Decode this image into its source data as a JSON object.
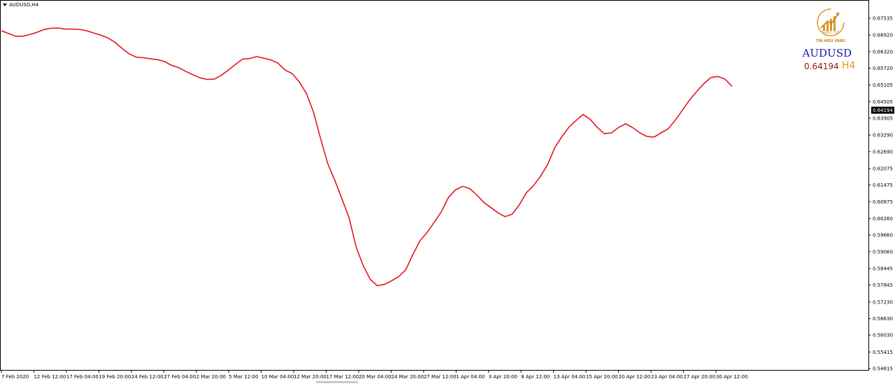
{
  "header": {
    "label": "AUDUSD,H4"
  },
  "symbol_panel": {
    "symbol": "AUDUSD",
    "price": "0.64194",
    "timeframe": "H4"
  },
  "logo": {
    "line1": "ĐẦU TƯ",
    "line2": "TÍN HIỆU VÀNG",
    "gold": "#d89a20"
  },
  "colors": {
    "line": "#e8141c",
    "axis": "#000000",
    "current_box": "#000000"
  },
  "chart_data": {
    "type": "line",
    "title": "AUDUSD,H4",
    "xlabel": "",
    "ylabel": "",
    "grid": false,
    "ylim": [
      0.54815,
      0.67535
    ],
    "current_price": "0.64194",
    "y_ticks": [
      "0.67535",
      "0.66920",
      "0.66320",
      "0.65720",
      "0.65105",
      "0.64505",
      "0.63905",
      "0.63290",
      "0.62690",
      "0.62075",
      "0.61475",
      "0.60875",
      "0.60260",
      "0.59660",
      "0.59060",
      "0.58445",
      "0.57845",
      "0.57230",
      "0.56630",
      "0.56030",
      "0.55415",
      "0.54815"
    ],
    "x_ticks": [
      "7 Feb 2020",
      "12 Feb 12:00",
      "17 Feb 04:00",
      "19 Feb 20:00",
      "24 Feb 12:00",
      "27 Feb 04:00",
      "2 Mar 20:00",
      "5 Mar 12:00",
      "10 Mar 04:00",
      "12 Mar 20:00",
      "17 Mar 12:00",
      "20 Mar 04:00",
      "24 Mar 20:00",
      "27 Mar 12:00",
      "1 Apr 04:00",
      "3 Apr 20:00",
      "8 Apr 12:00",
      "13 Apr 04:00",
      "15 Apr 20:00",
      "20 Apr 12:00",
      "23 Apr 04:00",
      "27 Apr 20:00",
      "30 Apr 12:00"
    ],
    "series": [
      {
        "values": [
          0.6708,
          0.6698,
          0.6688,
          0.6688,
          0.6694,
          0.6702,
          0.6712,
          0.6717,
          0.6718,
          0.6714,
          0.6714,
          0.6713,
          0.6708,
          0.67,
          0.6692,
          0.6682,
          0.6666,
          0.6644,
          0.6624,
          0.6612,
          0.661,
          0.6606,
          0.6603,
          0.6596,
          0.6582,
          0.6574,
          0.656,
          0.6548,
          0.6537,
          0.6531,
          0.6532,
          0.6546,
          0.6565,
          0.6586,
          0.6605,
          0.6607,
          0.6614,
          0.6608,
          0.6602,
          0.659,
          0.6565,
          0.6552,
          0.6522,
          0.648,
          0.6412,
          0.6315,
          0.6226,
          0.6165,
          0.6098,
          0.603,
          0.5923,
          0.5855,
          0.5805,
          0.5782,
          0.5787,
          0.58,
          0.5815,
          0.584,
          0.5895,
          0.5945,
          0.5975,
          0.6012,
          0.605,
          0.6102,
          0.613,
          0.6143,
          0.6135,
          0.6112,
          0.6085,
          0.6066,
          0.6047,
          0.6033,
          0.6042,
          0.6075,
          0.612,
          0.6145,
          0.618,
          0.6222,
          0.6283,
          0.6323,
          0.6358,
          0.6382,
          0.6404,
          0.6386,
          0.6357,
          0.6334,
          0.6337,
          0.6357,
          0.637,
          0.6356,
          0.6337,
          0.6324,
          0.6322,
          0.6337,
          0.6352,
          0.6383,
          0.642,
          0.6456,
          0.6487,
          0.6515,
          0.6538,
          0.6542,
          0.6532,
          0.6506
        ]
      }
    ]
  }
}
